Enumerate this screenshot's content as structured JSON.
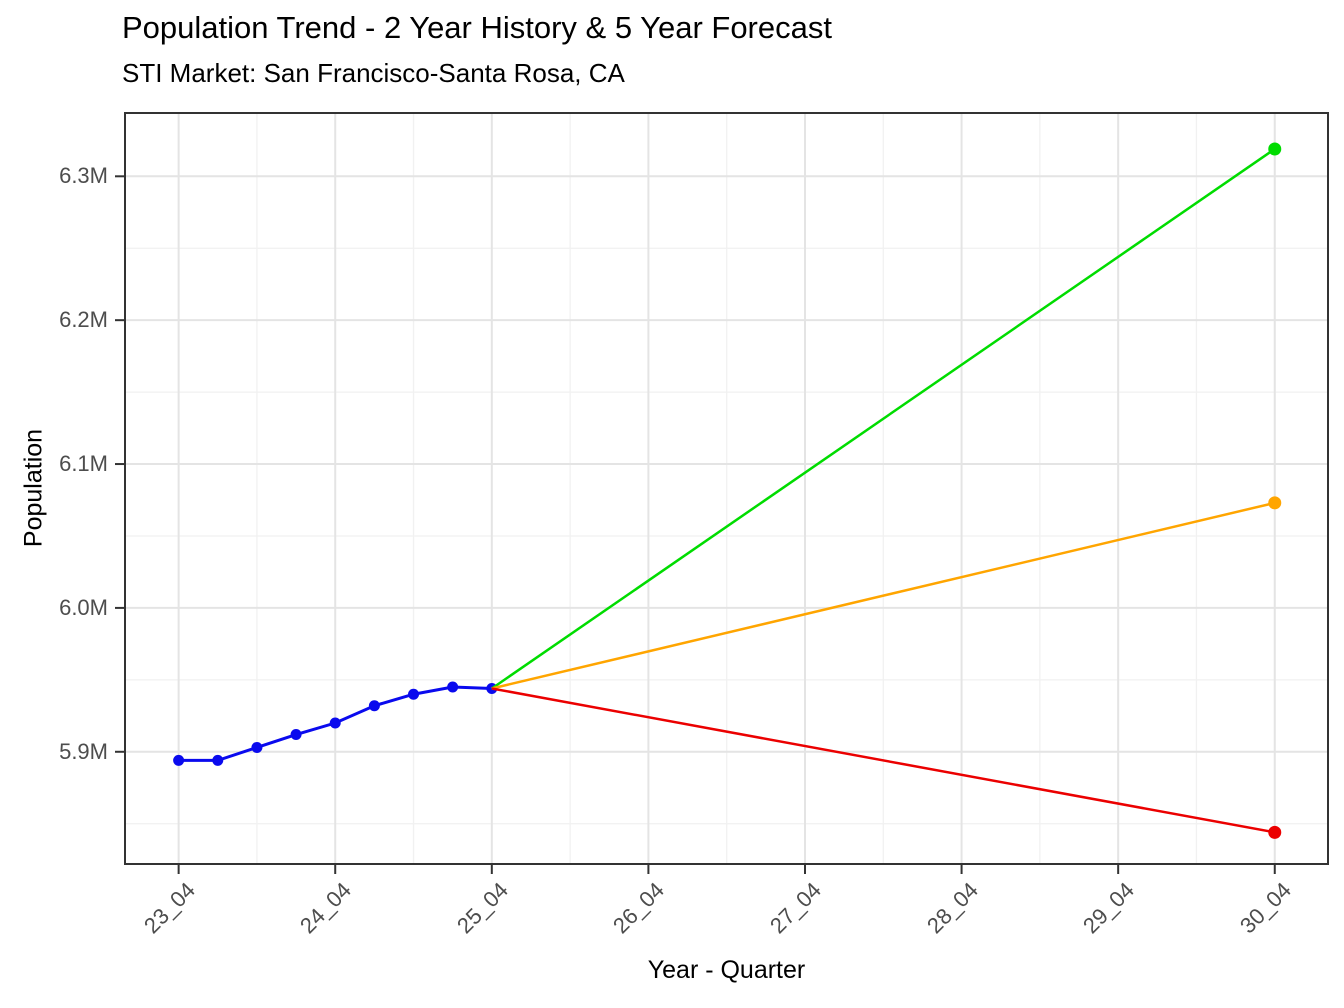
{
  "chart_data": {
    "type": "line",
    "title": "Population Trend - 2 Year History & 5 Year Forecast",
    "subtitle": "STI Market: San Francisco-Santa Rosa, CA",
    "xlabel": "Year - Quarter",
    "ylabel": "Population",
    "x_unit": "quarters_since_23_04",
    "xlim": [
      -1.37,
      29.36
    ],
    "ylim": [
      5822000,
      6344000
    ],
    "x_ticks": {
      "values": [
        0,
        4,
        8,
        12,
        16,
        20,
        24,
        28
      ],
      "labels": [
        "23_04",
        "24_04",
        "25_04",
        "26_04",
        "27_04",
        "28_04",
        "29_04",
        "30_04"
      ]
    },
    "x_minor_ticks": [
      2,
      6,
      10,
      14,
      18,
      22,
      26
    ],
    "y_ticks": {
      "values": [
        5900000,
        6000000,
        6100000,
        6200000,
        6300000
      ],
      "labels": [
        "5.9M",
        "6.0M",
        "6.1M",
        "6.2M",
        "6.3M"
      ]
    },
    "y_minor_ticks": [
      5850000,
      5950000,
      6050000,
      6150000,
      6250000
    ],
    "grid": {
      "major_color": "#E4E4E4",
      "minor_color": "#F1F1F1",
      "grid_on": true
    },
    "axis": {
      "border_color": "#333333",
      "tick_color": "#333333",
      "tick_label_color": "#4D4D4D"
    },
    "legend": "none",
    "series": [
      {
        "name": "history",
        "color": "#0A0AEE",
        "markers": "all",
        "line_width": 3,
        "x": [
          0,
          1,
          2,
          3,
          4,
          5,
          6,
          7,
          8
        ],
        "y": [
          5894000,
          5894000,
          5903000,
          5912000,
          5920000,
          5932000,
          5940000,
          5945000,
          5944000
        ]
      },
      {
        "name": "forecast-high",
        "color": "#00DC00",
        "markers": "last",
        "line_width": 2.5,
        "x": [
          8,
          28
        ],
        "y": [
          5944000,
          6319000
        ]
      },
      {
        "name": "forecast-base",
        "color": "#FFA500",
        "markers": "last",
        "line_width": 2.5,
        "x": [
          8,
          28
        ],
        "y": [
          5944000,
          6073000
        ]
      },
      {
        "name": "forecast-low",
        "color": "#EB0000",
        "markers": "last",
        "line_width": 2.5,
        "x": [
          8,
          28
        ],
        "y": [
          5944000,
          5844000
        ]
      }
    ]
  }
}
